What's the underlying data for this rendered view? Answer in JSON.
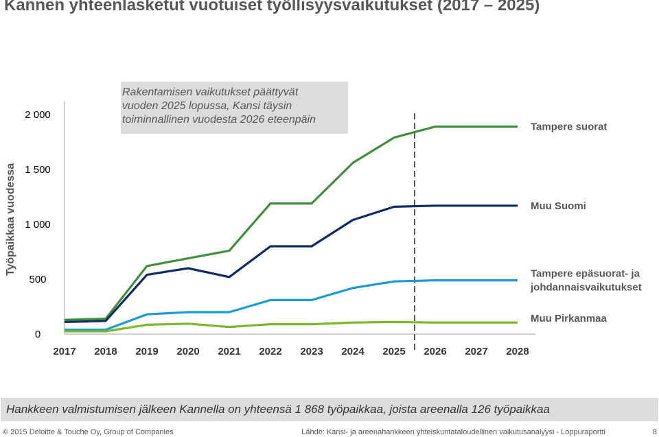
{
  "title": "Kannen yhteenlasketut vuotuiset työllisyysvaikutukset (2017 – 2025)",
  "callout": {
    "lines": [
      "Rakentamisen vaikutukset päättyvät",
      "vuoden 2025 lopussa, Kansi täysin",
      "toiminnallinen vuodesta 2026 eteenpäin"
    ]
  },
  "note": "Hankkeen valmistumisen jälkeen Kannella on yhteensä 1 868 työpaikkaa, joista areenalla 126 työpaikkaa",
  "footer": {
    "left": "© 2015 Deloitte & Touche Oy, Group of Companies",
    "right": "Lähde: Kansi- ja areenahankkeen yhteiskuntataloudellinen vaikutusanalyysi - Loppuraportti",
    "page": "8"
  },
  "chart_data": {
    "type": "line",
    "title": "Kannen yhteenlasketut vuotuiset työllisyysvaikutukset (2017 – 2025)",
    "ylabel": "Työpaikkaa vuodessa",
    "xlabel": "",
    "x": [
      "2017",
      "2018",
      "2019",
      "2020",
      "2021",
      "2022",
      "2023",
      "2024",
      "2025",
      "2026",
      "2027",
      "2028"
    ],
    "yticks": [
      0,
      500,
      1000,
      1500,
      2000
    ],
    "ytick_labels": [
      "0",
      "500",
      "1 000",
      "1 500",
      "2 000"
    ],
    "ylim": [
      0,
      2000
    ],
    "grid": false,
    "legend": "inline-right",
    "marker_line": {
      "x_between": [
        "2025",
        "2026"
      ],
      "style": "dashed",
      "color": "#575757"
    },
    "series": [
      {
        "name": "Tampere suorat",
        "color": "#3f8f3a",
        "label_lines": [
          "Tampere suorat"
        ],
        "values": [
          130,
          140,
          620,
          690,
          760,
          1190,
          1190,
          1560,
          1790,
          1890,
          1890,
          1890
        ]
      },
      {
        "name": "Muu Suomi",
        "color": "#0e2a66",
        "label_lines": [
          "Muu Suomi"
        ],
        "values": [
          110,
          120,
          540,
          600,
          520,
          800,
          800,
          1040,
          1160,
          1170,
          1170,
          1170
        ]
      },
      {
        "name": "Tampere epäsuorat- ja johdannaisvaikutukset",
        "color": "#1a9bd7",
        "label_lines": [
          "Tampere epäsuorat- ja",
          "johdannaisvaikutukset"
        ],
        "values": [
          40,
          40,
          180,
          200,
          200,
          310,
          310,
          420,
          480,
          490,
          490,
          490
        ]
      },
      {
        "name": "Muu Pirkanmaa",
        "color": "#7ab929",
        "label_lines": [
          "Muu Pirkanmaa"
        ],
        "values": [
          25,
          25,
          85,
          95,
          65,
          90,
          90,
          105,
          110,
          105,
          105,
          105
        ]
      }
    ]
  }
}
